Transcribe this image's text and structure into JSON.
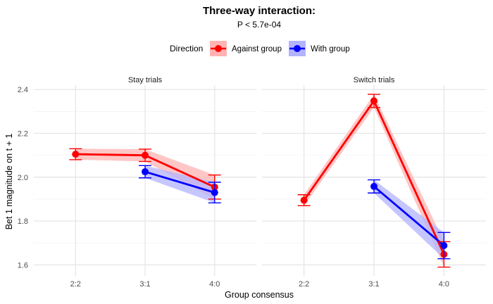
{
  "chart_data": {
    "type": "line",
    "title": "Three-way interaction:",
    "subtitle": "P < 5.7e-04",
    "xlabel": "Group consensus",
    "ylabel": "Bet 1 magnitude on t + 1",
    "ylim": [
      1.55,
      2.42
    ],
    "yticks": [
      1.6,
      1.8,
      2.0,
      2.2,
      2.4
    ],
    "ytick_labels": [
      "1.6",
      "1.8",
      "2.0",
      "2.2",
      "2.4"
    ],
    "categories": [
      "2:2",
      "3:1",
      "4:0"
    ],
    "grid": true,
    "legend": {
      "title": "Direction",
      "position": "top",
      "entries": [
        "Against group",
        "With group"
      ]
    },
    "colors": {
      "Against group": "#ff0000",
      "With group": "#0000ff",
      "Against group_band": "#ffb3b3",
      "With group_band": "#b3b3ff"
    },
    "facets": [
      {
        "label": "Stay trials",
        "series": [
          {
            "name": "Against group",
            "x": [
              "2:2",
              "3:1",
              "4:0"
            ],
            "y": [
              2.105,
              2.1,
              1.955
            ],
            "ymin": [
              2.08,
              2.072,
              1.9
            ],
            "ymax": [
              2.13,
              2.128,
              2.01
            ]
          },
          {
            "name": "With group",
            "x": [
              "3:1",
              "4:0"
            ],
            "y": [
              2.025,
              1.93
            ],
            "ymin": [
              1.997,
              1.883
            ],
            "ymax": [
              2.053,
              1.977
            ]
          }
        ]
      },
      {
        "label": "Switch trials",
        "series": [
          {
            "name": "Against group",
            "x": [
              "2:2",
              "3:1",
              "4:0"
            ],
            "y": [
              1.895,
              2.348,
              1.648
            ],
            "ymin": [
              1.87,
              2.318,
              1.59
            ],
            "ymax": [
              1.92,
              2.378,
              1.706
            ]
          },
          {
            "name": "With group",
            "x": [
              "3:1",
              "4:0"
            ],
            "y": [
              1.958,
              1.688
            ],
            "ymin": [
              1.928,
              1.628
            ],
            "ymax": [
              1.988,
              1.748
            ]
          }
        ]
      }
    ]
  }
}
